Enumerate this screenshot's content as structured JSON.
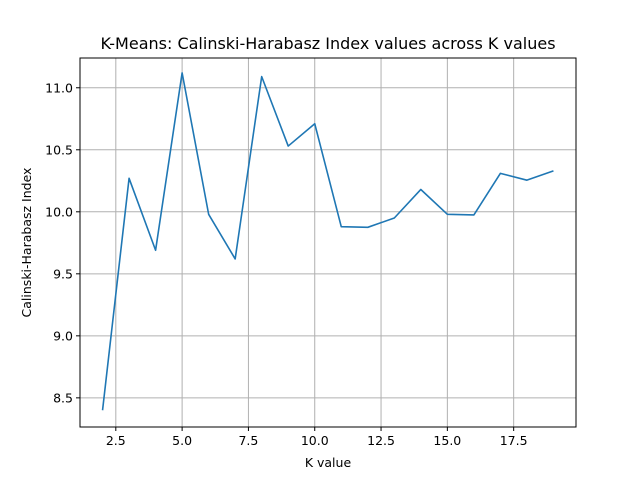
{
  "chart_data": {
    "type": "line",
    "title": "K-Means: Calinski-Harabasz Index values across K values",
    "xlabel": "K value",
    "ylabel": "Calinski-Harabasz Index",
    "xlim": [
      1.15,
      19.85
    ],
    "ylim": [
      8.265,
      11.24
    ],
    "xticks": [
      2.5,
      5.0,
      7.5,
      10.0,
      12.5,
      15.0,
      17.5
    ],
    "xtick_labels": [
      "2.5",
      "5.0",
      "7.5",
      "10.0",
      "12.5",
      "15.0",
      "17.5"
    ],
    "yticks": [
      8.5,
      9.0,
      9.5,
      10.0,
      10.5,
      11.0
    ],
    "ytick_labels": [
      "8.5",
      "9.0",
      "9.5",
      "10.0",
      "10.5",
      "11.0"
    ],
    "grid": true,
    "series": [
      {
        "color": "#1f77b4",
        "x": [
          2,
          3,
          4,
          5,
          6,
          7,
          8,
          9,
          10,
          11,
          12,
          13,
          14,
          15,
          16,
          17,
          18,
          19
        ],
        "y": [
          8.4,
          10.27,
          9.69,
          11.12,
          9.98,
          9.62,
          11.09,
          10.53,
          10.71,
          9.88,
          9.875,
          9.95,
          10.18,
          9.98,
          9.975,
          10.31,
          10.255,
          10.33
        ]
      }
    ]
  }
}
